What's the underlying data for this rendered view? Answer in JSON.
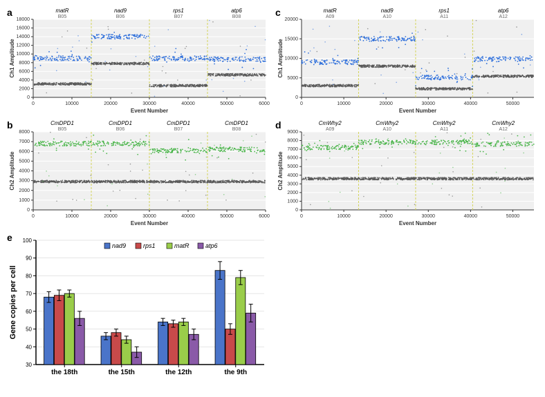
{
  "panelLabels": {
    "a": "a",
    "b": "b",
    "c": "c",
    "d": "d",
    "e": "e"
  },
  "scatter": {
    "plot_bg": "#f0f0f0",
    "grid_color": "#ffffff",
    "axis_color": "#333333",
    "tick_font_size": 7,
    "axis_title_font_size": 8,
    "gene_font_size": 8,
    "well_font_size": 7,
    "separator_color": "#d4d45a",
    "xlabel": "Event Number",
    "a": {
      "ylabel": "Ch1 Amplitude",
      "xmax": 60000,
      "ymax": 18000,
      "ytick_step": 2000,
      "xtick_step": 10000,
      "cluster_color_top": "#2e6fdb",
      "cluster_color_bot": "#5a5a5a",
      "segments": [
        {
          "gene": "matR",
          "well": "B05",
          "x0": 0,
          "x1": 15000,
          "top_mean": 9000,
          "bot_mean": 3100
        },
        {
          "gene": "nad9",
          "well": "B06",
          "x0": 15000,
          "x1": 30000,
          "top_mean": 14000,
          "bot_mean": 7800
        },
        {
          "gene": "rps1",
          "well": "B07",
          "x0": 30000,
          "x1": 45000,
          "top_mean": 9000,
          "bot_mean": 2700
        },
        {
          "gene": "atp6",
          "well": "B08",
          "x0": 45000,
          "x1": 60000,
          "top_mean": 8800,
          "bot_mean": 5200
        }
      ]
    },
    "b": {
      "ylabel": "Ch2 Amplitude",
      "xmax": 60000,
      "ymax": 8000,
      "ytick_step": 1000,
      "xtick_step": 10000,
      "cluster_color_top": "#4ab54a",
      "cluster_color_bot": "#5a5a5a",
      "segments": [
        {
          "gene": "CmDPD1",
          "well": "B05",
          "x0": 0,
          "x1": 15000,
          "top_mean": 6800,
          "bot_mean": 2900
        },
        {
          "gene": "CmDPD1",
          "well": "B06",
          "x0": 15000,
          "x1": 30000,
          "top_mean": 6800,
          "bot_mean": 2900
        },
        {
          "gene": "CmDPD1",
          "well": "B07",
          "x0": 30000,
          "x1": 45000,
          "top_mean": 6100,
          "bot_mean": 2900
        },
        {
          "gene": "CmDPD1",
          "well": "B08",
          "x0": 45000,
          "x1": 60000,
          "top_mean": 6200,
          "bot_mean": 2900
        }
      ]
    },
    "c": {
      "ylabel": "Ch1 Amplitude",
      "xmax": 55000,
      "ymax": 20000,
      "ytick_step": 5000,
      "xtick_step": 10000,
      "cluster_color_top": "#2e6fdb",
      "cluster_color_bot": "#5a5a5a",
      "segments": [
        {
          "gene": "matR",
          "well": "A09",
          "x0": 0,
          "x1": 13500,
          "top_mean": 9000,
          "bot_mean": 3000
        },
        {
          "gene": "nad9",
          "well": "A10",
          "x0": 13500,
          "x1": 27000,
          "top_mean": 15000,
          "bot_mean": 8000
        },
        {
          "gene": "rps1",
          "well": "A11",
          "x0": 27000,
          "x1": 40500,
          "top_mean": 5100,
          "bot_mean": 2200
        },
        {
          "gene": "atp6",
          "well": "A12",
          "x0": 40500,
          "x1": 55000,
          "top_mean": 9800,
          "bot_mean": 5400
        }
      ]
    },
    "d": {
      "ylabel": "Ch2 Amplitude",
      "xmax": 55000,
      "ymax": 9000,
      "ytick_step": 1000,
      "xtick_step": 10000,
      "cluster_color_top": "#4ab54a",
      "cluster_color_bot": "#5a5a5a",
      "segments": [
        {
          "gene": "CmWhy2",
          "well": "A09",
          "x0": 0,
          "x1": 13500,
          "top_mean": 7200,
          "bot_mean": 3600
        },
        {
          "gene": "CmWhy2",
          "well": "A10",
          "x0": 13500,
          "x1": 27000,
          "top_mean": 7800,
          "bot_mean": 3600
        },
        {
          "gene": "CmWhy2",
          "well": "A11",
          "x0": 27000,
          "x1": 40500,
          "top_mean": 7800,
          "bot_mean": 3600
        },
        {
          "gene": "CmWhy2",
          "well": "A12",
          "x0": 40500,
          "x1": 55000,
          "top_mean": 7600,
          "bot_mean": 3600
        }
      ]
    }
  },
  "bar": {
    "ylabel": "Gene copies per cell",
    "ymin": 30,
    "ymax": 100,
    "ytick_step": 10,
    "plot_bg": "#ffffff",
    "grid_color": "#cccccc",
    "axis_color": "#000000",
    "tick_font_size": 8,
    "axis_title_font_size": 11,
    "legend_font_size": 9,
    "bar_border": "#000000",
    "error_color": "#000000",
    "categories": [
      "the 18th",
      "the 15th",
      "the 12th",
      "the 9th"
    ],
    "series": [
      {
        "name": "nad9",
        "color": "#4a74c9"
      },
      {
        "name": "rps1",
        "color": "#c84a4a"
      },
      {
        "name": "matR",
        "color": "#9acd4a"
      },
      {
        "name": "atp6",
        "color": "#8a5aa8"
      }
    ],
    "data": [
      {
        "cat": "the 18th",
        "values": [
          68,
          69,
          70,
          56
        ],
        "errs": [
          3,
          3,
          2,
          4
        ]
      },
      {
        "cat": "the 15th",
        "values": [
          46,
          48,
          44,
          37
        ],
        "errs": [
          2,
          2,
          2,
          3
        ]
      },
      {
        "cat": "the 12th",
        "values": [
          54,
          53,
          54,
          47
        ],
        "errs": [
          2,
          2,
          2,
          3
        ]
      },
      {
        "cat": "the 9th",
        "values": [
          83,
          50,
          79,
          59
        ],
        "errs": [
          5,
          3,
          4,
          5
        ]
      }
    ],
    "group_gap": 0.4,
    "bar_width": 0.18
  }
}
